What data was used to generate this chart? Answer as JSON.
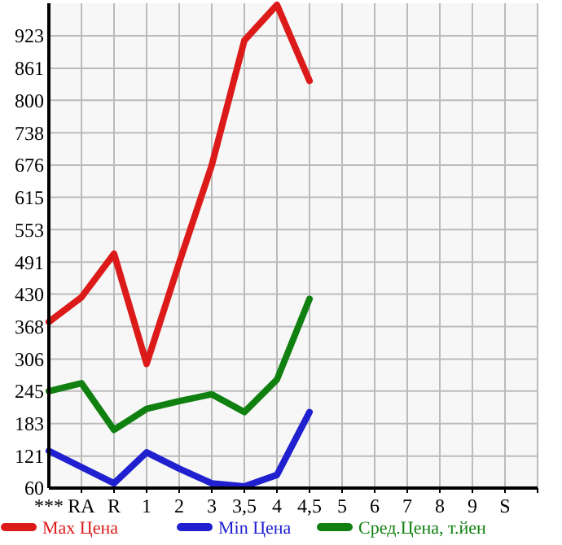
{
  "chart_data": {
    "type": "line",
    "categories": [
      "***",
      "RA",
      "R",
      "1",
      "2",
      "3",
      "3,5",
      "4",
      "4,5",
      "5",
      "6",
      "7",
      "8",
      "9",
      "S"
    ],
    "series": [
      {
        "name": "Max Цена",
        "color": "#dd1a1a",
        "values": [
          377,
          424,
          507,
          297,
          490,
          676,
          914,
          982,
          837,
          null,
          null,
          null,
          null,
          null,
          null
        ]
      },
      {
        "name": "Min Цена",
        "color": "#2020d0",
        "values": [
          131,
          100,
          69,
          128,
          97,
          69,
          63,
          85,
          205,
          null,
          null,
          null,
          null,
          null,
          null
        ]
      },
      {
        "name": "Сред.Цена, т.йен",
        "color": "#108010",
        "values": [
          245,
          260,
          171,
          211,
          226,
          239,
          205,
          267,
          421,
          null,
          null,
          null,
          null,
          null,
          null
        ]
      }
    ],
    "ylim": [
      60,
      985
    ],
    "yticks": [
      60,
      121,
      183,
      245,
      306,
      368,
      430,
      491,
      553,
      615,
      676,
      738,
      800,
      861,
      923
    ],
    "grid": true,
    "legend": "bottom",
    "marker": "none",
    "line_style": "solid"
  }
}
